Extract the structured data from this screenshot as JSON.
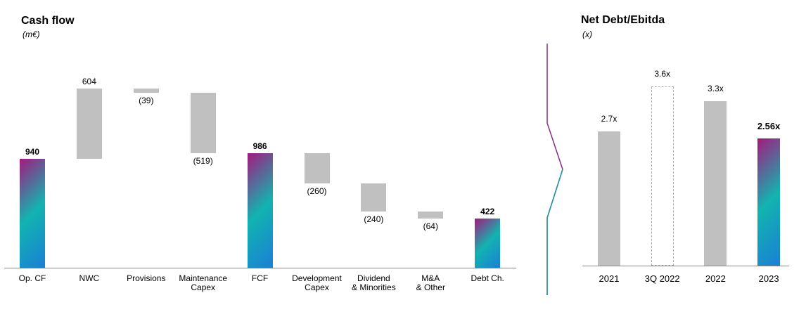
{
  "chart_data": [
    {
      "type": "waterfall",
      "title": "Cash flow",
      "subtitle": "(m€)",
      "categories": [
        "Op. CF",
        "NWC",
        "Provisions",
        "Maintenance\nCapex",
        "FCF",
        "Development\nCapex",
        "Dividend\n& Minorities",
        "M&A\n& Other",
        "Debt Ch."
      ],
      "values": [
        940,
        604,
        -39,
        -519,
        986,
        -260,
        -240,
        -64,
        422
      ],
      "value_labels": [
        "940",
        "604",
        "(39)",
        "(519)",
        "986",
        "(260)",
        "(240)",
        "(64)",
        "422"
      ],
      "totals": [
        true,
        false,
        false,
        false,
        true,
        false,
        false,
        false,
        true
      ],
      "color": "#c0c0c0",
      "total_colors": [
        "#a4197f",
        "#12b3b0",
        "#1a7fd6"
      ]
    },
    {
      "type": "bar",
      "title": "Net Debt/Ebitda",
      "subtitle": "(x)",
      "categories": [
        "2021",
        "3Q 2022",
        "2022",
        "2023"
      ],
      "values": [
        2.7,
        3.6,
        3.3,
        2.56
      ],
      "value_labels": [
        "2.7x",
        "3.6x",
        "3.3x",
        "2.56x"
      ],
      "styles": [
        "solid",
        "dashed",
        "solid",
        "gradient"
      ],
      "color": "#c0c0c0",
      "total_colors": [
        "#a4197f",
        "#12b3b0",
        "#1a7fd6"
      ]
    }
  ]
}
